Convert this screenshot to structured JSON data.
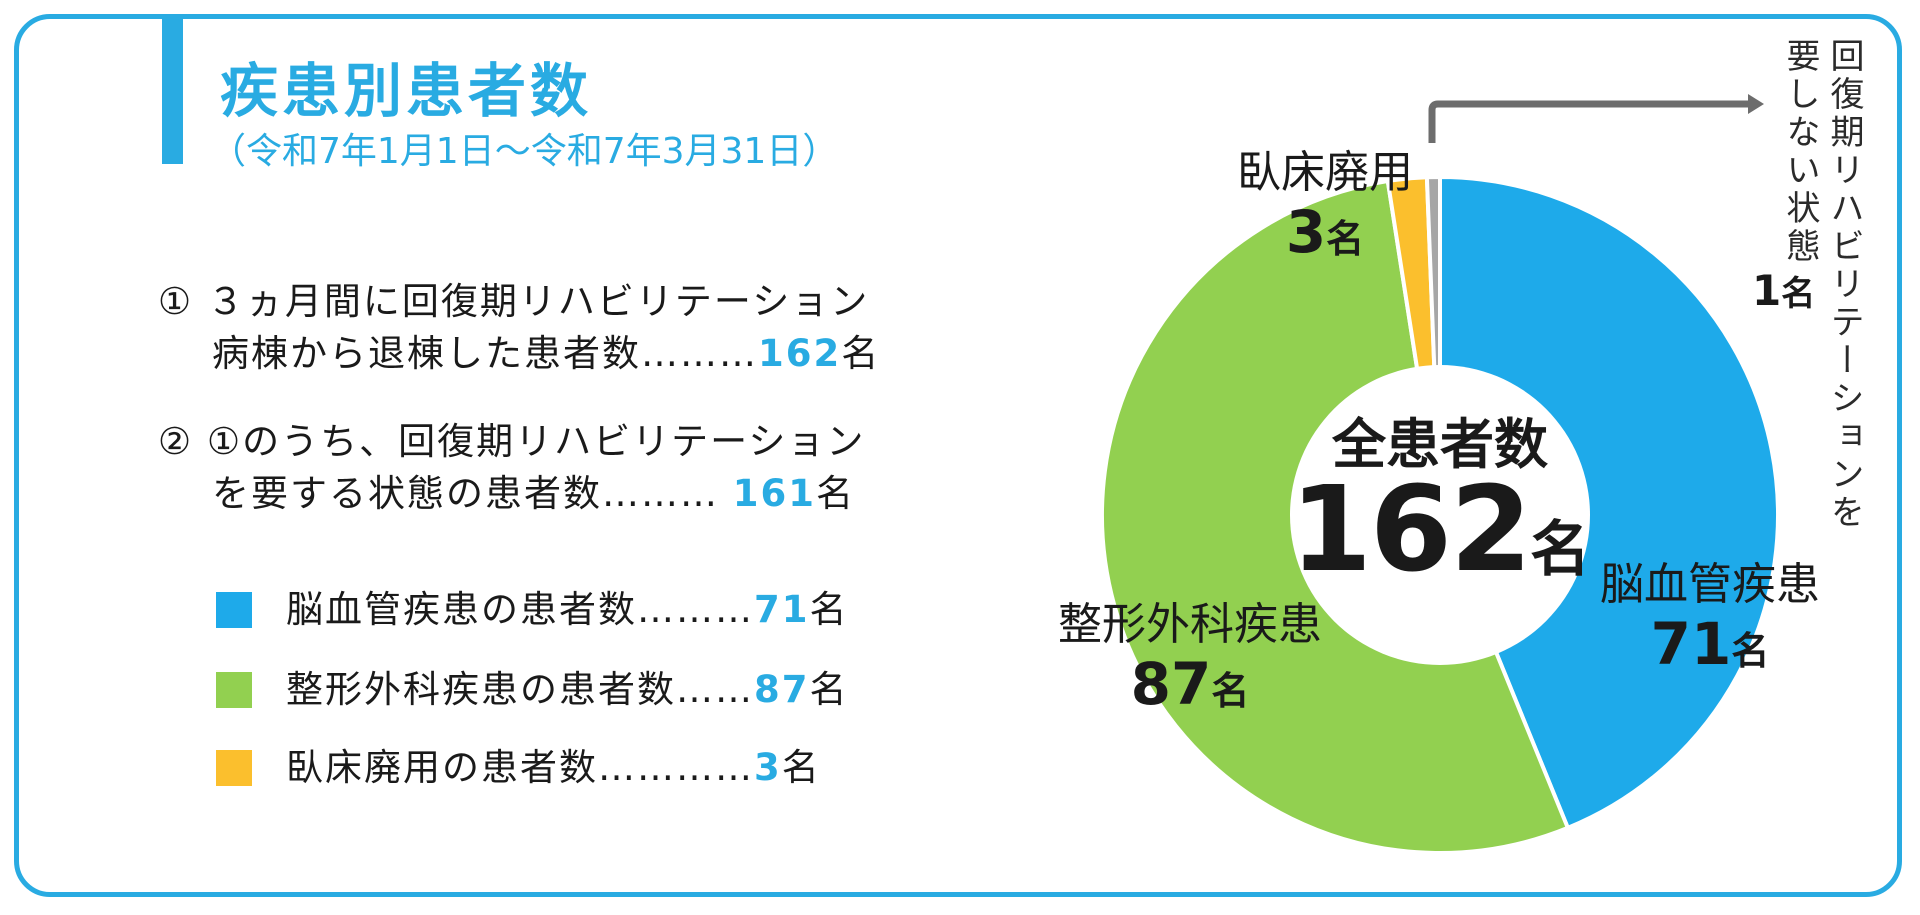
{
  "header": {
    "title": "疾患別患者数",
    "period": "（令和7年1月1日～令和7年3月31日）"
  },
  "items": [
    {
      "marker": "①",
      "line1": "３ヵ月間に回復期リハビリテーション",
      "line2": "病棟から退棟した患者数………",
      "value": "162",
      "unit": "名"
    },
    {
      "marker": "②",
      "line1": "①のうち、回復期リハビリテーション",
      "line2": "を要する状態の患者数……… ",
      "value": "161",
      "unit": "名"
    }
  ],
  "legend": [
    {
      "label": "脳血管疾患の患者数………",
      "value": "71",
      "unit": "名",
      "color": "#1eaaea"
    },
    {
      "label": "整形外科疾患の患者数…… ",
      "value": "87",
      "unit": "名",
      "color": "#92d050"
    },
    {
      "label": "臥床廃用の患者数………… ",
      "value": "3",
      "unit": "名",
      "color": "#fbbf2d"
    }
  ],
  "chart_data": {
    "type": "pie",
    "style": "donut",
    "center_title": "全患者数",
    "center_value": "162",
    "center_unit": "名",
    "series": [
      {
        "name": "脳血管疾患",
        "value": 71,
        "color": "#1eaaea"
      },
      {
        "name": "整形外科疾患",
        "value": 87,
        "color": "#92d050"
      },
      {
        "name": "臥床廃用",
        "value": 3,
        "color": "#fbbf2d"
      },
      {
        "name": "回復期リハビリテーションを要しない状態",
        "value": 1,
        "color": "#a6a6a6"
      }
    ],
    "labels": {
      "cerebrovascular": {
        "name": "脳血管疾患",
        "value": "71",
        "unit": "名"
      },
      "orthopedic": {
        "name": "整形外科疾患",
        "value": "87",
        "unit": "名"
      },
      "disuse": {
        "name": "臥床廃用",
        "value": "3",
        "unit": "名"
      },
      "no_rehab": {
        "name_line1": "回復期リハビリテーションを",
        "name_line2": "要しない状態",
        "value": "1",
        "unit": "名"
      }
    },
    "total": 162
  }
}
